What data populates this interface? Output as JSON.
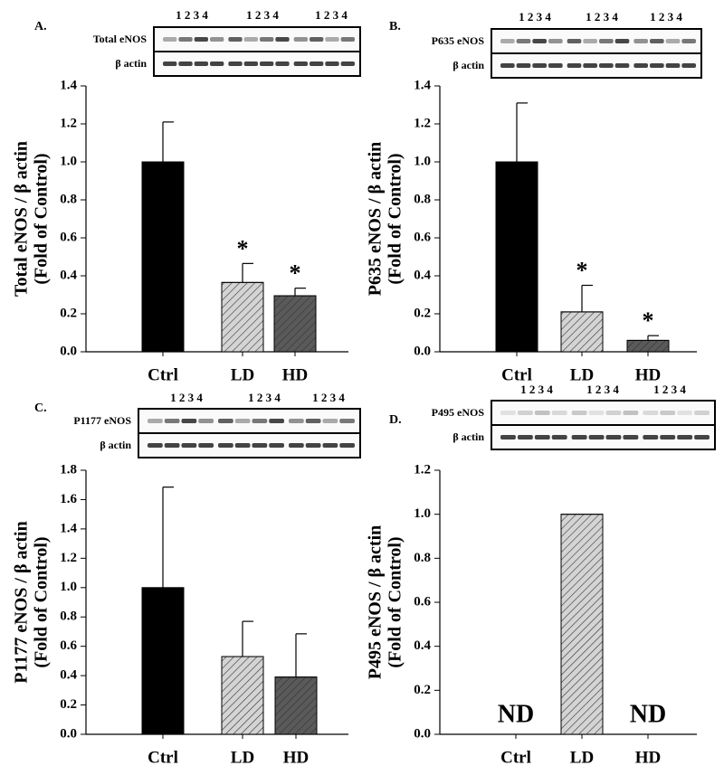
{
  "chart_data": [
    {
      "type": "bar",
      "panel": "A.",
      "blot": {
        "lanes": [
          "1 2 3 4",
          "1 2 3 4",
          "1 2 3 4"
        ],
        "rows": [
          "Total eNOS",
          "β actin"
        ]
      },
      "ylabel": [
        "Total eNOS / β actin",
        "(Fold of Control)"
      ],
      "categories": [
        "Ctrl",
        "LD",
        "HD"
      ],
      "values": [
        1.0,
        0.365,
        0.295
      ],
      "errors": [
        0.21,
        0.1,
        0.04
      ],
      "bar_labels": [
        null,
        "*",
        "*"
      ],
      "colors": [
        "#000000",
        "#d4d4d4",
        "#5a5a5a"
      ],
      "hatch": [
        false,
        true,
        true
      ],
      "ylim": [
        0,
        1.4
      ],
      "yticks": [
        {
          "value": 0,
          "label": "0.0"
        },
        0.2,
        0.4,
        0.6,
        0.8,
        {
          "value": 1,
          "label": "1.0"
        },
        1.2,
        1.4
      ]
    },
    {
      "type": "bar",
      "panel": "B.",
      "blot": {
        "lanes": [
          "1 2 3 4",
          "1 2 3 4",
          "1 2 3 4"
        ],
        "rows": [
          "P635 eNOS",
          "β actin"
        ]
      },
      "ylabel": [
        "P635 eNOS / β actin",
        "(Fold of Control)"
      ],
      "categories": [
        "Ctrl",
        "LD",
        "HD"
      ],
      "values": [
        1.0,
        0.21,
        0.06
      ],
      "errors": [
        0.31,
        0.14,
        0.025
      ],
      "bar_labels": [
        null,
        "*",
        "*"
      ],
      "colors": [
        "#000000",
        "#d4d4d4",
        "#5a5a5a"
      ],
      "hatch": [
        false,
        true,
        true
      ],
      "ylim": [
        0,
        1.4
      ],
      "yticks": [
        {
          "value": 0,
          "label": "0.0"
        },
        0.2,
        0.4,
        0.6,
        0.8,
        {
          "value": 1,
          "label": "1.0"
        },
        1.2,
        1.4
      ]
    },
    {
      "type": "bar",
      "panel": "C.",
      "blot": {
        "lanes": [
          "1 2 3 4",
          "1 2 3 4",
          "1 2 3 4"
        ],
        "rows": [
          "P1177 eNOS",
          "β actin"
        ]
      },
      "ylabel": [
        "P1177 eNOS / β actin",
        "(Fold of Control)"
      ],
      "categories": [
        "Ctrl",
        "LD",
        "HD"
      ],
      "values": [
        1.0,
        0.53,
        0.39
      ],
      "errors": [
        0.685,
        0.24,
        0.295
      ],
      "colors": [
        "#000000",
        "#d4d4d4",
        "#5a5a5a"
      ],
      "hatch": [
        false,
        true,
        true
      ],
      "ylim": [
        0,
        1.8
      ],
      "yticks": [
        {
          "value": 0,
          "label": "0.0"
        },
        0.2,
        0.4,
        0.6,
        0.8,
        {
          "value": 1,
          "label": "1.0"
        },
        1.2,
        1.4,
        1.6,
        1.8
      ]
    },
    {
      "type": "bar",
      "panel": "D.",
      "blot": {
        "lanes": [
          "1 2 3 4",
          "1 2 3 4",
          "1 2 3 4"
        ],
        "rows": [
          "P495 eNOS",
          "β actin"
        ]
      },
      "ylabel": [
        "P495 eNOS / β actin",
        "(Fold of Control)"
      ],
      "categories": [
        "Ctrl",
        "LD",
        "HD"
      ],
      "values": [
        null,
        1.0,
        null
      ],
      "errors": [
        null,
        null,
        null
      ],
      "bar_labels": [
        "ND",
        null,
        "ND"
      ],
      "colors": [
        "#000000",
        "#d4d4d4",
        "#5a5a5a"
      ],
      "hatch": [
        false,
        true,
        true
      ],
      "ylim": [
        0,
        1.2
      ],
      "yticks": [
        {
          "value": 0,
          "label": "0.0"
        },
        0.2,
        0.4,
        0.6,
        0.8,
        {
          "value": 1,
          "label": "1.0"
        },
        1.2
      ]
    }
  ]
}
